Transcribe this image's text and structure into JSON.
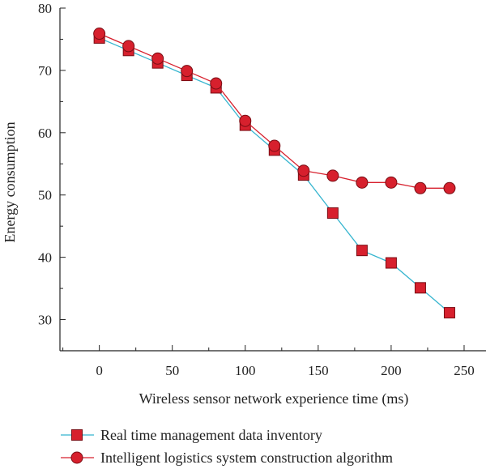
{
  "chart_data": {
    "type": "line",
    "xlabel": "Wireless sensor network experience time (ms)",
    "ylabel": "Energy consumption",
    "xlim": [
      -27,
      265
    ],
    "ylim": [
      25,
      80
    ],
    "x_ticks": [
      0,
      50,
      100,
      150,
      200,
      250
    ],
    "y_ticks": [
      30,
      40,
      50,
      60,
      70,
      80
    ],
    "grid": false,
    "legend_position": "bottom",
    "series": [
      {
        "name": "Real time management data inventory",
        "marker": "square",
        "line_color": "#36b5cf",
        "marker_color": "#d7202d",
        "x": [
          0,
          20,
          40,
          60,
          80,
          100,
          120,
          140,
          160,
          180,
          200,
          220,
          240
        ],
        "values": [
          75.2,
          73.2,
          71.2,
          69.2,
          67.2,
          61.2,
          57.2,
          53.2,
          47.1,
          41.1,
          39.1,
          35.1,
          31.1
        ]
      },
      {
        "name": "Intelligent logistics system construction algorithm",
        "marker": "circle",
        "line_color": "#d7202d",
        "marker_color": "#d7202d",
        "x": [
          0,
          20,
          40,
          60,
          80,
          100,
          120,
          140,
          160,
          180,
          200,
          220,
          240
        ],
        "values": [
          75.9,
          73.9,
          71.9,
          69.9,
          67.9,
          61.9,
          57.9,
          53.9,
          53.1,
          52.0,
          52.0,
          51.1,
          51.1
        ]
      }
    ]
  }
}
